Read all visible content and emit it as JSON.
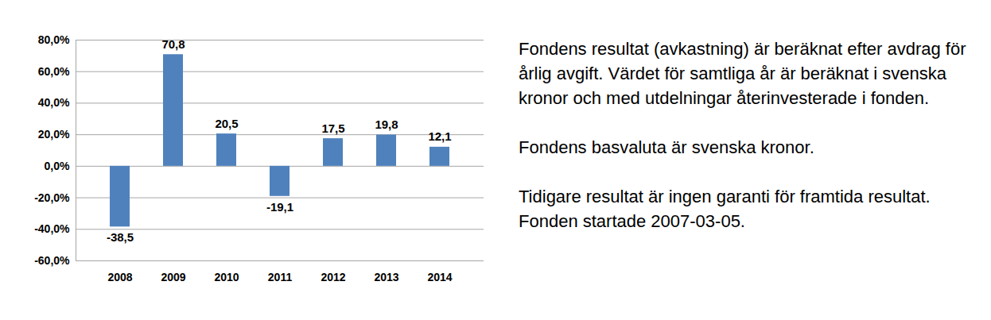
{
  "chart_data": {
    "type": "bar",
    "categories": [
      "2008",
      "2009",
      "2010",
      "2011",
      "2012",
      "2013",
      "2014"
    ],
    "values": [
      -38.5,
      70.8,
      20.5,
      -19.1,
      17.5,
      19.8,
      12.1
    ],
    "value_labels": [
      "-38,5",
      "70,8",
      "20,5",
      "-19,1",
      "17,5",
      "19,8",
      "12,1"
    ],
    "color": "#4f81bd",
    "ylim": [
      -60,
      80
    ],
    "yticks": [
      {
        "value": -60,
        "label": "-60,0%"
      },
      {
        "value": -40,
        "label": "-40,0%"
      },
      {
        "value": -20,
        "label": "-20,0%"
      },
      {
        "value": 0,
        "label": "0,0%"
      },
      {
        "value": 20,
        "label": "20,0%"
      },
      {
        "value": 40,
        "label": "40,0%"
      },
      {
        "value": 60,
        "label": "60,0%"
      },
      {
        "value": 80,
        "label": "80,0%"
      }
    ],
    "grid": true,
    "data_labels": true,
    "annotations": [
      "Fondens resultat (avkastning) är beräknat efter avdrag för årlig avgift. Värdet för samtliga år är beräknat i svenska kronor och med utdelningar återinvesterade i fonden.",
      "Fondens basvaluta är svenska kronor.",
      "Tidigare resultat är ingen garanti för framtida resultat. Fonden startade 2007-03-05."
    ]
  }
}
